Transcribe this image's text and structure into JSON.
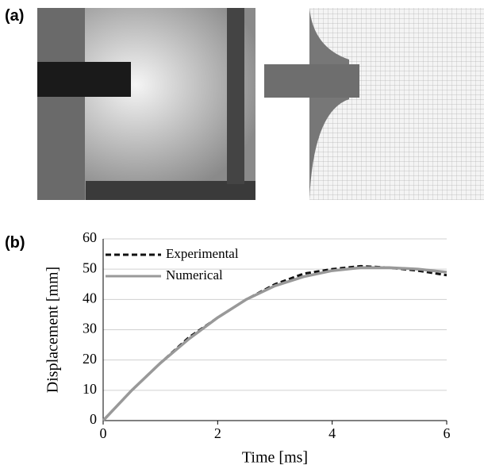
{
  "panels": [
    {
      "label": "(a)"
    },
    {
      "label": "(b)"
    }
  ],
  "chart_data": {
    "type": "line",
    "x_label": "Time [ms]",
    "y_label": "Displacement [mm]",
    "x": [
      0,
      0.5,
      1,
      1.5,
      2,
      2.5,
      3,
      3.5,
      4,
      4.5,
      5,
      5.5,
      6
    ],
    "series": [
      {
        "name": "Experimental",
        "color": "#111111",
        "dash": true,
        "values": [
          0,
          10,
          19,
          27.5,
          34,
          40,
          45,
          48.5,
          50,
          51,
          50.5,
          49.5,
          48
        ]
      },
      {
        "name": "Numerical",
        "color": "#999999",
        "dash": false,
        "values": [
          0,
          10,
          19,
          27,
          34,
          40,
          44.5,
          47.5,
          49.5,
          50.5,
          50.5,
          50,
          49
        ]
      }
    ],
    "xlim": [
      0,
      6
    ],
    "xticks": [
      0,
      2,
      4,
      6
    ],
    "ylim": [
      0,
      60
    ],
    "yticks": [
      0,
      10,
      20,
      30,
      40,
      50,
      60
    ],
    "grid": true
  }
}
